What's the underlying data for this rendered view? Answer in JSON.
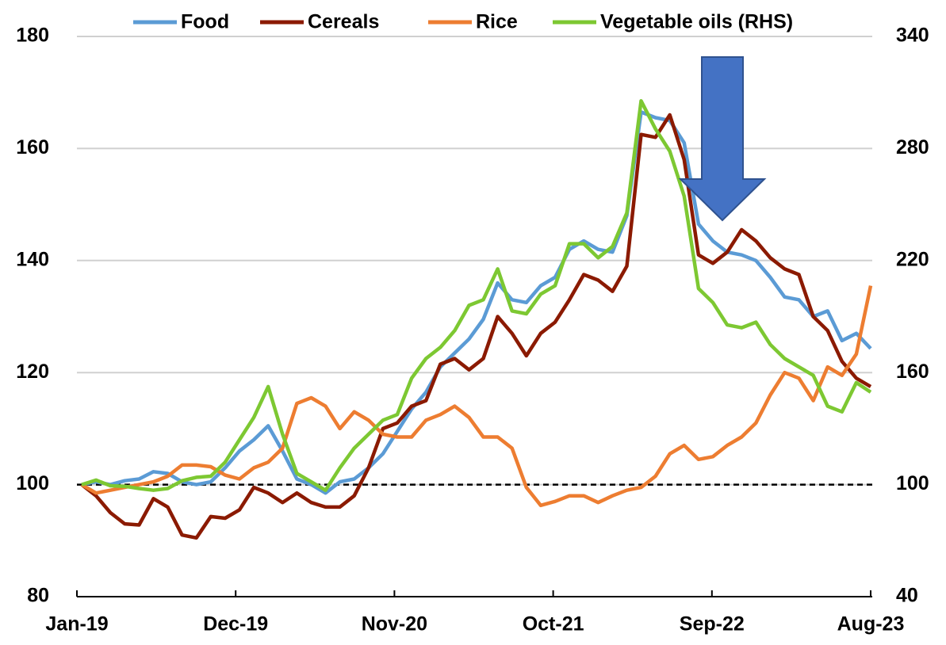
{
  "chart_data": {
    "type": "line",
    "categories": [
      "Jan-19",
      null,
      null,
      null,
      null,
      null,
      null,
      null,
      null,
      null,
      null,
      "Dec-19",
      null,
      null,
      null,
      null,
      null,
      null,
      null,
      null,
      null,
      null,
      "Nov-20",
      null,
      null,
      null,
      null,
      null,
      null,
      null,
      null,
      null,
      null,
      "Oct-21",
      null,
      null,
      null,
      null,
      null,
      null,
      null,
      null,
      null,
      null,
      "Sep-22",
      null,
      null,
      null,
      null,
      null,
      null,
      null,
      null,
      null,
      null,
      "Aug-23"
    ],
    "series": [
      {
        "name": "Food",
        "color": "#5b9bd5",
        "values": [
          100,
          100.5,
          100,
          100.7,
          101,
          102.3,
          102,
          100.5,
          100,
          100.5,
          103,
          106,
          108,
          110.5,
          106,
          101,
          100,
          98.5,
          100.5,
          101,
          103,
          105.5,
          109.5,
          113.5,
          116.5,
          121,
          123.5,
          126,
          129.5,
          136,
          133,
          132.5,
          135.5,
          137,
          142,
          143.5,
          142,
          141.5,
          148,
          166.5,
          165.5,
          165,
          161,
          146.5,
          143.5,
          141.5,
          141,
          140,
          137,
          133.5,
          133,
          130,
          131,
          125.7,
          127,
          124.3
        ]
      },
      {
        "name": "Cereals",
        "color": "#8b1a00",
        "values": [
          100,
          98,
          95,
          93,
          92.8,
          97.5,
          96,
          91,
          90.5,
          94.3,
          94,
          95.5,
          99.5,
          98.5,
          96.8,
          98.5,
          96.8,
          96,
          96,
          98,
          103,
          110,
          111,
          114,
          115,
          121.5,
          122.5,
          120.5,
          122.5,
          130,
          127,
          123,
          127,
          129,
          133,
          137.5,
          136.5,
          134.5,
          139,
          162.5,
          162,
          166,
          158,
          141,
          139.5,
          141.5,
          145.5,
          143.5,
          140.5,
          138.5,
          137.5,
          130,
          127.5,
          122,
          119,
          117.5
        ]
      },
      {
        "name": "Rice",
        "color": "#ed7d31",
        "values": [
          100,
          98.5,
          99,
          99.5,
          100,
          100.5,
          101.5,
          103.5,
          103.5,
          103.2,
          101.7,
          101,
          103,
          104,
          106.5,
          114.5,
          115.5,
          114,
          110,
          113,
          111.5,
          109,
          108.5,
          108.5,
          111.5,
          112.5,
          114,
          112,
          108.5,
          108.5,
          106.5,
          99.5,
          96.3,
          97,
          98,
          98,
          96.8,
          98,
          99,
          99.5,
          101.5,
          105.5,
          107,
          104.5,
          105,
          107,
          108.5,
          111,
          116,
          120,
          119,
          115,
          121,
          119.5,
          123.3,
          135.5
        ]
      },
      {
        "name": "Vegetable oils (RHS)",
        "color": "#7dc832",
        "axis": "y2",
        "values": [
          100,
          102.4,
          99.4,
          99.1,
          97.9,
          97,
          97.9,
          102.1,
          103.9,
          104.5,
          112,
          124,
          136,
          152.5,
          127,
          106,
          101.5,
          97,
          109,
          119.5,
          127,
          134.5,
          137.5,
          157,
          167.5,
          173.5,
          182.5,
          196,
          199,
          215.5,
          193,
          191.5,
          202,
          206.5,
          229,
          229,
          221.5,
          227.5,
          245.5,
          305.5,
          290.5,
          278.5,
          254.5,
          205,
          197.5,
          185.5,
          184,
          187,
          175,
          167.5,
          163,
          158.5,
          142,
          139,
          154.6,
          149.5
        ]
      }
    ],
    "ylim": [
      80,
      180
    ],
    "yticks": [
      80,
      100,
      120,
      140,
      160,
      180
    ],
    "y2lim": [
      40,
      340
    ],
    "y2ticks": [
      40,
      100,
      160,
      220,
      280,
      340
    ],
    "grid": true,
    "reference_line": 100,
    "legend": "top"
  }
}
